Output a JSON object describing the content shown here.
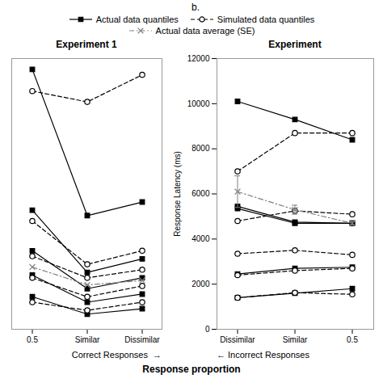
{
  "annotations": [
    "b."
  ],
  "xlabel": "Response proportion",
  "chart_data": [
    {
      "type": "line",
      "title": "Experiment 1",
      "categories": [
        "0.5",
        "Similar",
        "Dissimilar"
      ],
      "ylim": [
        1000,
        6000
      ],
      "tick_labels": "x",
      "legend": "top",
      "annotations": [
        "Correct Responses  →"
      ],
      "series": [
        {
          "name": "Actual data quantiles",
          "color": "black",
          "marker": "square",
          "line_style": "solid",
          "values": [
            5800,
            3100,
            3350
          ]
        },
        {
          "name": "Actual data quantiles",
          "color": "black",
          "marker": "square",
          "line_style": "solid",
          "values": [
            3200,
            2050,
            2300
          ]
        },
        {
          "name": "Actual data quantiles",
          "color": "black",
          "marker": "square",
          "line_style": "solid",
          "values": [
            2450,
            1750,
            1950
          ]
        },
        {
          "name": "Actual data quantiles",
          "color": "black",
          "marker": "square",
          "line_style": "solid",
          "values": [
            2000,
            1500,
            1650
          ]
        },
        {
          "name": "Actual data quantiles",
          "color": "black",
          "marker": "square",
          "line_style": "solid",
          "values": [
            1600,
            1280,
            1380
          ]
        },
        {
          "name": "Simulated data quantiles",
          "color": "black",
          "marker": "circle",
          "line_style": "dashed",
          "values": [
            5400,
            5200,
            5700
          ]
        },
        {
          "name": "Simulated data quantiles",
          "color": "black",
          "marker": "circle",
          "line_style": "dashed",
          "values": [
            3000,
            2200,
            2450
          ]
        },
        {
          "name": "Simulated data quantiles",
          "color": "black",
          "marker": "circle",
          "line_style": "dashed",
          "values": [
            2350,
            1950,
            2100
          ]
        },
        {
          "name": "Simulated data quantiles",
          "color": "black",
          "marker": "circle",
          "line_style": "dashed",
          "values": [
            1950,
            1600,
            1800
          ]
        },
        {
          "name": "Simulated data quantiles",
          "color": "black",
          "marker": "circle",
          "line_style": "dashed",
          "values": [
            1500,
            1350,
            1500
          ]
        },
        {
          "name": "Actual data average (SE)",
          "color": "gray",
          "marker": "x",
          "line_style": "dashdot",
          "values": [
            2150,
            1820,
            1900
          ]
        }
      ]
    },
    {
      "type": "line",
      "title": "Experiment",
      "ylabel": "Response Latency (ms)",
      "categories": [
        "Dissimilar",
        "Similar",
        "0.5"
      ],
      "ylim": [
        0,
        12000
      ],
      "yticks": [
        0,
        2000,
        4000,
        6000,
        8000,
        10000,
        12000
      ],
      "annotations": [
        "← Incorrect Responses"
      ],
      "series": [
        {
          "name": "Actual data quantiles",
          "color": "black",
          "marker": "square",
          "line_style": "solid",
          "values": [
            10100,
            9300,
            8400
          ]
        },
        {
          "name": "Actual data quantiles",
          "color": "black",
          "marker": "square",
          "line_style": "solid",
          "values": [
            5450,
            4750,
            4700
          ]
        },
        {
          "name": "Actual data quantiles",
          "color": "black",
          "marker": "square",
          "line_style": "solid",
          "values": [
            5350,
            4700,
            4700
          ]
        },
        {
          "name": "Actual data quantiles",
          "color": "black",
          "marker": "square",
          "line_style": "solid",
          "values": [
            2450,
            2700,
            2750
          ]
        },
        {
          "name": "Actual data quantiles",
          "color": "black",
          "marker": "square",
          "line_style": "solid",
          "values": [
            1400,
            1600,
            1800
          ]
        },
        {
          "name": "Simulated data quantiles",
          "color": "black",
          "marker": "circle",
          "line_style": "dashed",
          "values": [
            7000,
            8700,
            8700
          ]
        },
        {
          "name": "Simulated data quantiles",
          "color": "black",
          "marker": "circle",
          "line_style": "dashed",
          "values": [
            4800,
            5250,
            5100
          ]
        },
        {
          "name": "Simulated data quantiles",
          "color": "black",
          "marker": "circle",
          "line_style": "dashed",
          "values": [
            3350,
            3500,
            3300
          ]
        },
        {
          "name": "Simulated data quantiles",
          "color": "black",
          "marker": "circle",
          "line_style": "dashed",
          "values": [
            2400,
            2600,
            2700
          ]
        },
        {
          "name": "Simulated data quantiles",
          "color": "black",
          "marker": "circle",
          "line_style": "dashed",
          "values": [
            1400,
            1620,
            1550
          ]
        },
        {
          "name": "Actual data average (SE)",
          "color": "gray",
          "marker": "x",
          "line_style": "dashdot",
          "values": [
            6100,
            5300,
            4700
          ],
          "yerr": [
            700,
            200,
            80
          ]
        }
      ]
    }
  ]
}
